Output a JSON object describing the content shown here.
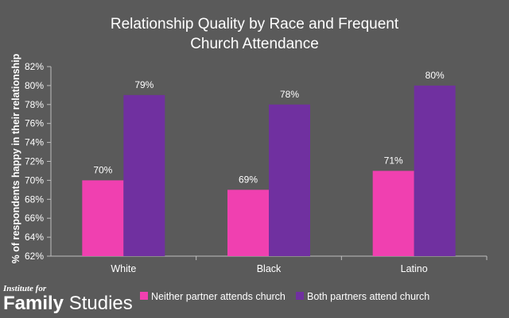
{
  "chart_data": {
    "type": "bar",
    "title_line1": "Relationship Quality by Race and Frequent",
    "title_line2": "Church Attendance",
    "ylabel": "% of respondents happy in their relationship",
    "xlabel": "",
    "categories": [
      "White",
      "Black",
      "Latino"
    ],
    "series": [
      {
        "name": "Neither partner attends church",
        "values": [
          70,
          69,
          71
        ],
        "color": "#f040b0"
      },
      {
        "name": "Both partners attend church",
        "values": [
          79,
          78,
          80
        ],
        "color": "#7030a0"
      }
    ],
    "ylim": [
      62,
      82
    ],
    "ytick_step": 2,
    "value_suffix": "%",
    "grid": false,
    "legend_position": "bottom"
  },
  "brand": {
    "top": "Institute for",
    "main_bold": "Family",
    "main_light": "Studies"
  },
  "colors": {
    "background": "#5a5a5a",
    "text": "#ffffff",
    "axis": "#bfbfbf"
  }
}
